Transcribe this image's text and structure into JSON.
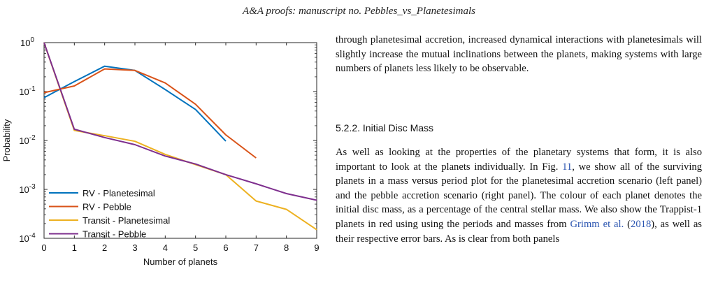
{
  "header": {
    "journal": "A&A proofs:",
    "manuscript": "manuscript no. Pebbles_vs_Planetesimals"
  },
  "chart_data": {
    "type": "line",
    "xlabel": "Number of planets",
    "ylabel": "Probability",
    "xlim": [
      0,
      9
    ],
    "ylim": [
      0.0001,
      1
    ],
    "yscale": "log",
    "x_ticks": [
      "0",
      "1",
      "2",
      "3",
      "4",
      "5",
      "6",
      "7",
      "8",
      "9"
    ],
    "y_ticks": [
      {
        "base": "10",
        "exp": "0",
        "value": 1
      },
      {
        "base": "10",
        "exp": "-1",
        "value": 0.1
      },
      {
        "base": "10",
        "exp": "-2",
        "value": 0.01
      },
      {
        "base": "10",
        "exp": "-3",
        "value": 0.001
      },
      {
        "base": "10",
        "exp": "-4",
        "value": 0.0001
      }
    ],
    "legend_position": "bottom-left",
    "series": [
      {
        "name": "RV - Planetesimal",
        "color": "#0072BD",
        "x": [
          0,
          1,
          2,
          3,
          4,
          5,
          6
        ],
        "y": [
          0.075,
          0.16,
          0.33,
          0.27,
          0.11,
          0.043,
          0.0097
        ]
      },
      {
        "name": "RV - Pebble",
        "color": "#D95319",
        "x": [
          0,
          1,
          2,
          3,
          4,
          5,
          6,
          7
        ],
        "y": [
          0.095,
          0.13,
          0.29,
          0.27,
          0.15,
          0.055,
          0.013,
          0.0044
        ]
      },
      {
        "name": "Transit - Planetesimal",
        "color": "#EDB120",
        "x": [
          0,
          1,
          2,
          3,
          4,
          5,
          6,
          7,
          8,
          9
        ],
        "y": [
          1,
          0.016,
          0.0125,
          0.0096,
          0.0052,
          0.0032,
          0.002,
          0.00058,
          0.00039,
          0.00015
        ]
      },
      {
        "name": "Transit - Pebble",
        "color": "#7E2F8E",
        "x": [
          0,
          1,
          2,
          3,
          4,
          5,
          6,
          7,
          8,
          9
        ],
        "y": [
          1,
          0.017,
          0.0115,
          0.0082,
          0.0048,
          0.0033,
          0.002,
          0.0013,
          0.00082,
          0.0006
        ]
      }
    ]
  },
  "body": {
    "para1": "through planetesimal accretion, increased dynamical interactions with planetesimals will slightly increase the mutual inclinations between the planets, making systems with large numbers of planets less likely to be observable.",
    "section_title": "5.2.2. Initial Disc Mass",
    "para2_a": "As well as looking at the properties of the planetary systems that form, it is also important to look at the planets individually. In Fig.",
    "fig_ref": "11",
    "para2_b": ", we show all of the surviving planets in a mass versus period plot for the planetesimal accretion scenario (left panel) and the pebble accretion scenario (right panel). The colour of each planet denotes the initial disc mass, as a percentage of the central stellar mass. We also show the Trappist-1 planets in red using using the periods and masses from",
    "cite_ref": "Grimm et al.",
    "cite_open": " (",
    "cite_year": "2018",
    "para2_c": "), as well as their respective error bars. As is clear from both panels"
  }
}
